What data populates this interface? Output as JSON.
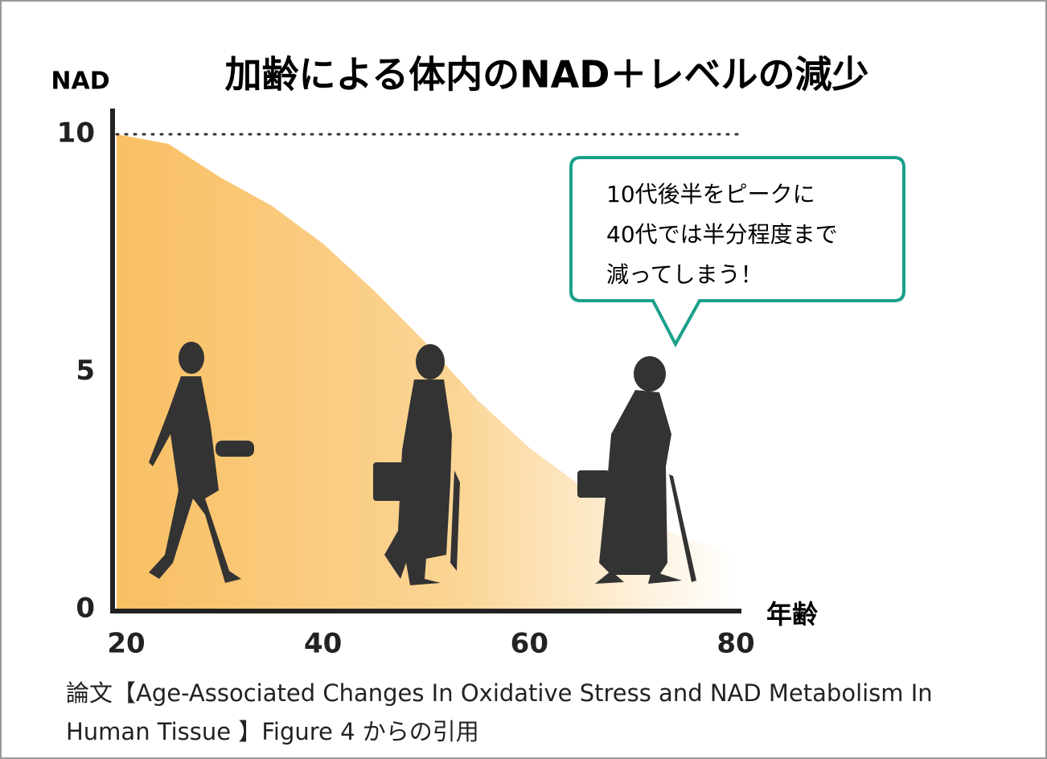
{
  "chart_data": {
    "type": "area",
    "title": "加齢による体内のNAD＋レベルの減少",
    "ylabel": "NAD",
    "xlabel": "年齢",
    "x": [
      20,
      25,
      30,
      35,
      40,
      45,
      50,
      55,
      60,
      65,
      70,
      75,
      80
    ],
    "values": [
      10,
      9.8,
      9.1,
      8.5,
      7.7,
      6.7,
      5.6,
      4.4,
      3.4,
      2.6,
      2.0,
      1.5,
      1.2
    ],
    "color": "#f9bf63",
    "xlim": [
      20,
      80
    ],
    "xticks": [
      20,
      40,
      60,
      80
    ],
    "ylim": [
      0,
      10
    ],
    "yticks": [
      0,
      5,
      10
    ],
    "reference_line": 10,
    "annotation": [
      "10代後半をピークに",
      "40代では半分程度まで",
      "減ってしまう！"
    ]
  },
  "source": "論文【Age-Associated Changes In Oxidative Stress and NAD Metabolism In Human Tissue 】Figure 4 からの引用"
}
